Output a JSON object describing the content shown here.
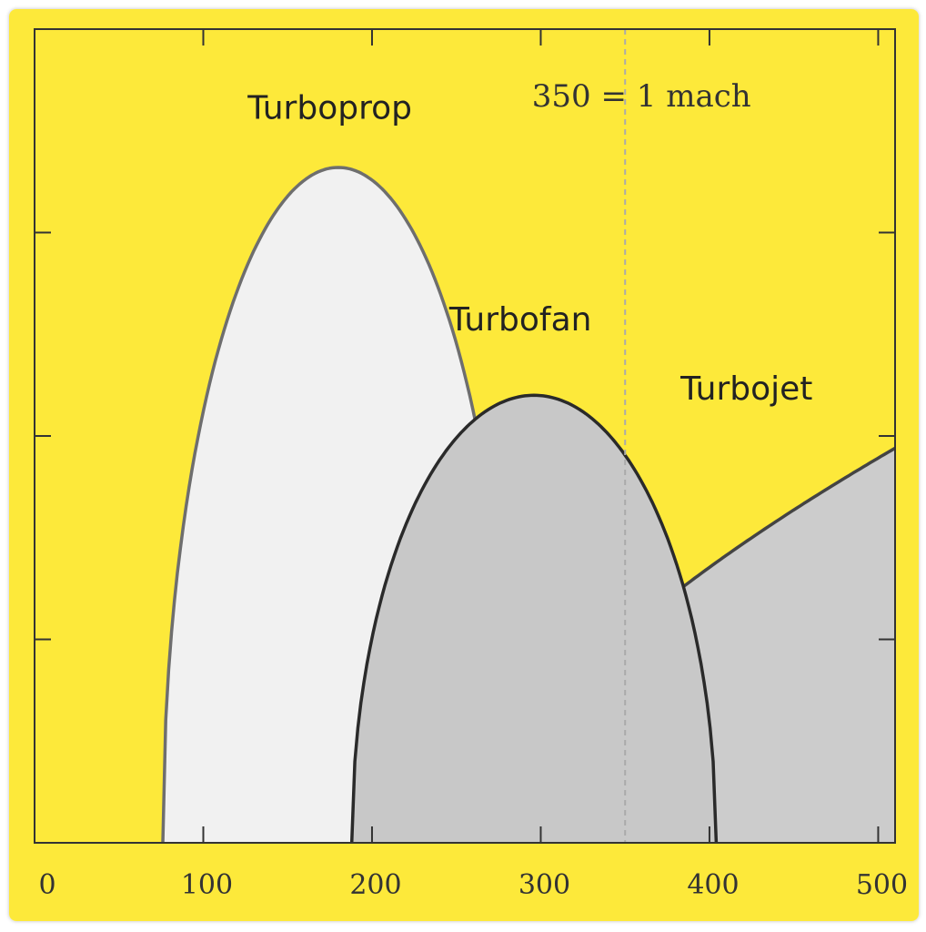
{
  "colors": {
    "background": "#fde93a",
    "turboprop_fill": "#f1f1f1",
    "turboprop_stroke": "#6e6e6e",
    "turbofan_fill": "#c8c8c8",
    "turbofan_stroke": "#2a2a2a",
    "turbojet_fill": "#cccccc",
    "turbojet_stroke": "#444444",
    "axis": "#333333",
    "reference_line": "#aaaaaa"
  },
  "chart_data": {
    "type": "area",
    "title": "",
    "xlabel": "",
    "ylabel": "",
    "xlim": [
      0,
      510
    ],
    "ylim": [
      0,
      100
    ],
    "x_ticks": [
      0,
      100,
      200,
      300,
      400,
      500
    ],
    "x_tick_labels": [
      "0",
      "100",
      "200",
      "300",
      "400",
      "500"
    ],
    "y_ticks": [
      25,
      50,
      75
    ],
    "grid": false,
    "reference_line": {
      "x": 350,
      "label": "350 = 1 mach"
    },
    "series": [
      {
        "name": "Turboprop",
        "shape": "arch",
        "x_start": 76,
        "x_peak": 180,
        "x_end": 284,
        "peak_y": 83,
        "label_position": {
          "x": 175,
          "y": 89
        }
      },
      {
        "name": "Turbofan",
        "shape": "arch",
        "x_start": 188,
        "x_peak": 296,
        "x_end": 404,
        "peak_y": 55,
        "label_position": {
          "x": 288,
          "y": 63
        }
      },
      {
        "name": "Turbojet",
        "shape": "rising",
        "x_start": 260,
        "x_end": 510,
        "end_y": 48.5,
        "label_position": {
          "x": 422,
          "y": 54.5
        }
      }
    ]
  }
}
